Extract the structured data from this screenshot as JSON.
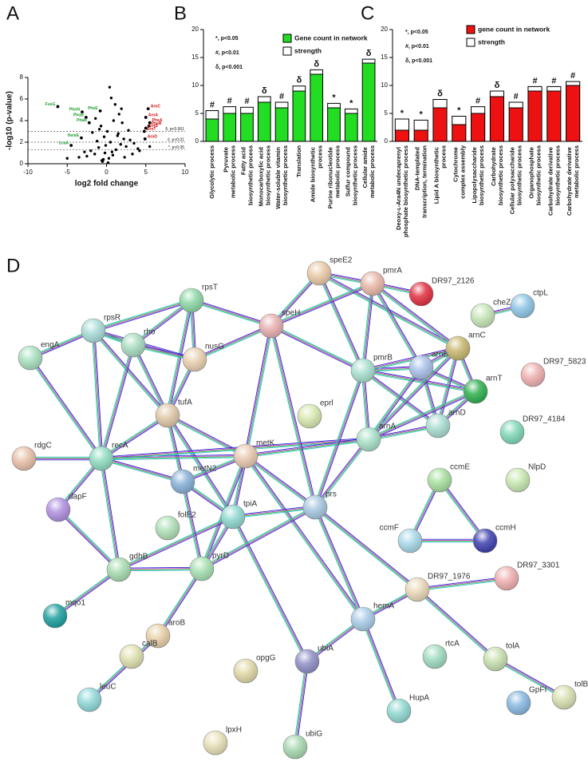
{
  "panels": [
    "A",
    "B",
    "C",
    "D"
  ],
  "chart_data": [
    {
      "type": "scatter",
      "xlabel": "log2 fold change",
      "ylabel": "-log10 (p-value)",
      "xlim": [
        -10,
        10
      ],
      "ylim": [
        0,
        8
      ],
      "xticks": [
        -10,
        -5,
        0,
        5,
        10
      ],
      "yticks": [
        0,
        2,
        4,
        6,
        8
      ],
      "color": "#000000",
      "x": [
        -0.5,
        0.3,
        -0.2,
        0.8,
        -1,
        1.2,
        -1.5,
        0.5,
        -0.3,
        1.8,
        -2,
        2.2,
        0.1,
        -0.7,
        1.5,
        -1.2,
        2.5,
        -2.5,
        3,
        0.9,
        -0.1,
        0.6,
        -0.9,
        1.1,
        -1.8,
        2,
        -2.8,
        3.5,
        1.6,
        -0.4,
        0.2,
        4,
        -3.5,
        2.8,
        0.4,
        -1.4,
        1.9,
        1.4,
        -0.6,
        0.7,
        2.3,
        3.3,
        4.2,
        -5,
        5.5
      ],
      "y": [
        0.2,
        0.5,
        1,
        0.8,
        1.5,
        1.3,
        0.9,
        2,
        2.5,
        1.8,
        1.2,
        2.3,
        3,
        3.5,
        2.8,
        2.1,
        1.6,
        0.7,
        2.2,
        4,
        1.7,
        6.1,
        3.2,
        5.5,
        2.9,
        3.8,
        1.1,
        1.9,
        4.6,
        0.4,
        0.1,
        1.4,
        0.6,
        3.1,
        7.1,
        4.2,
        5.1,
        2.6,
        0.3,
        1.1,
        0.6,
        0.9,
        1.2,
        0.5,
        1.6
      ],
      "thresholds": [
        {
          "value": 3,
          "label": "δ, p<0.001"
        },
        {
          "value": 2,
          "label": "#, p<0.01"
        },
        {
          "value": 1.3,
          "label": "*, p<0.05"
        }
      ],
      "annotations": [
        {
          "text": "FusG",
          "x": -6.2,
          "y": 5.3,
          "color": "#1a9e2a"
        },
        {
          "text": "PhnN",
          "x": -3.1,
          "y": 4.8,
          "color": "#1a9e2a"
        },
        {
          "text": "PheE",
          "x": -0.8,
          "y": 4.9,
          "color": "#1a9e2a"
        },
        {
          "text": "PhoB",
          "x": -2.6,
          "y": 4.3,
          "color": "#1a9e2a"
        },
        {
          "text": "PhaB",
          "x": -2.2,
          "y": 3.8,
          "color": "#1a9e2a"
        },
        {
          "text": "HemE",
          "x": -3.2,
          "y": 2.4,
          "color": "#1a9e2a"
        },
        {
          "text": "LcaA",
          "x": -4.5,
          "y": 1.7,
          "color": "#1a9e2a"
        },
        {
          "text": "ArnC",
          "x": 5.3,
          "y": 5.1,
          "color": "#d01010"
        },
        {
          "text": "ArnA",
          "x": 5.0,
          "y": 4.3,
          "color": "#d01010"
        },
        {
          "text": "PheA",
          "x": 5.5,
          "y": 3.8,
          "color": "#d01010"
        },
        {
          "text": "PheB",
          "x": 5.4,
          "y": 3.5,
          "color": "#d01010"
        },
        {
          "text": "ArnB",
          "x": 5.0,
          "y": 3.3,
          "color": "#d01010"
        },
        {
          "text": "ArnT",
          "x": 4.8,
          "y": 3.0,
          "color": "#d01010"
        },
        {
          "text": "ArnD",
          "x": 4.9,
          "y": 2.3,
          "color": "#d01010"
        }
      ]
    },
    {
      "type": "bar",
      "stacked": true,
      "categories": [
        "Glycolytic process",
        "Pyruvate metabolic process",
        "Fatty acid biosynthetic process",
        "Monocarboxylic acid biosynthetic process",
        "Water-soluble vitamin biosynthetic process",
        "Translation",
        "Amide biosynthetic process",
        "Purine ribonucleotide metabolic process",
        "Sulfur compound biosynthetic process",
        "Cellular amide metabolic process"
      ],
      "series": [
        {
          "name": "Gene count in network",
          "color": "#22dd22",
          "values": [
            4,
            5,
            5,
            7,
            6,
            9,
            12,
            6,
            5,
            14
          ]
        },
        {
          "name": "strength",
          "color": "#ffffff",
          "values": [
            1.5,
            1.2,
            1.1,
            1.0,
            1.0,
            0.9,
            0.8,
            0.8,
            0.8,
            0.7
          ]
        }
      ],
      "markers": [
        "#",
        "#",
        "#",
        "δ",
        "#",
        "δ",
        "δ",
        "*",
        "*",
        "δ"
      ],
      "notes": [
        "*, p<0.05",
        "#, p<0.01",
        "δ, p<0.001"
      ],
      "ylim": [
        0,
        20
      ],
      "yticks": [
        0,
        5,
        10,
        15,
        20
      ]
    },
    {
      "type": "bar",
      "stacked": true,
      "categories": [
        "Deoxy-ʟ-Ara4N undecaprenyl phosphate biosynthetic process",
        "DNA-templated transcription, termination",
        "Lipid A biosynthetic process",
        "Cytochrome complex assembly",
        "Lipopolysaccharide biosynthetic process",
        "Carbohydrate biosynthetic process",
        "Cellular polysaccharide biosynthetic process",
        "Organophosphate biosynthetic process",
        "Carbohydrate derivative biosynthetic process",
        "Carbohydrate derivative metabolic process"
      ],
      "series": [
        {
          "name": "gene count in network",
          "color": "#ee1111",
          "values": [
            2,
            2,
            6,
            3,
            5,
            8,
            6,
            9,
            9,
            10
          ]
        },
        {
          "name": "strength",
          "color": "#ffffff",
          "values": [
            2,
            1.8,
            1.5,
            1.5,
            1.2,
            1.0,
            1.0,
            0.8,
            0.8,
            0.7
          ]
        }
      ],
      "markers": [
        "*",
        "*",
        "δ",
        "*",
        "#",
        "δ",
        "#",
        "#",
        "#",
        "#"
      ],
      "notes": [
        "*, p<0.05",
        "#, p<0.01",
        "δ, p<0.001"
      ],
      "ylim": [
        0,
        20
      ],
      "yticks": [
        0,
        5,
        10,
        15,
        20
      ]
    }
  ],
  "network": {
    "nodes": [
      {
        "label": "speE2",
        "color": "#e9c9a8"
      },
      {
        "label": "pmrA",
        "color": "#e9b8a8"
      },
      {
        "label": "DR97_2126",
        "color": "#e23040"
      },
      {
        "label": "ctpL",
        "color": "#8ec6e6"
      },
      {
        "label": "cheZ",
        "color": "#c6e6b8"
      },
      {
        "label": "rpsT",
        "color": "#8ed8a8"
      },
      {
        "label": "rpsR",
        "color": "#a8dcd8"
      },
      {
        "label": "rho",
        "color": "#a8dcc0"
      },
      {
        "label": "engA",
        "color": "#a8e0c0"
      },
      {
        "label": "nusG",
        "color": "#e9d0b0"
      },
      {
        "label": "speH",
        "color": "#e9b0b0"
      },
      {
        "label": "pmrB",
        "color": "#a8e0d0"
      },
      {
        "label": "arnB",
        "color": "#a8c0e8"
      },
      {
        "label": "arnC",
        "color": "#c8b870"
      },
      {
        "label": "arnT",
        "color": "#30b050"
      },
      {
        "label": "DR97_5823",
        "color": "#f0b0b0"
      },
      {
        "label": "arnA",
        "color": "#a8e0c8"
      },
      {
        "label": "arnD",
        "color": "#a8dcd0"
      },
      {
        "label": "eprl",
        "color": "#d8e8b0"
      },
      {
        "label": "tufA",
        "color": "#e0c8a8"
      },
      {
        "label": "recA",
        "color": "#90dcc0"
      },
      {
        "label": "metK",
        "color": "#e8c8b0"
      },
      {
        "label": "metN2",
        "color": "#88b0d8"
      },
      {
        "label": "rdgC",
        "color": "#e8c0a8"
      },
      {
        "label": "DR97_4184",
        "color": "#80d8b8"
      },
      {
        "label": "ccmE",
        "color": "#a8e0a0"
      },
      {
        "label": "NlpD",
        "color": "#c8e8b0"
      },
      {
        "label": "dapF",
        "color": "#b090e0"
      },
      {
        "label": "prs",
        "color": "#a8c8e0"
      },
      {
        "label": "tpiA",
        "color": "#90d8d0"
      },
      {
        "label": "folE2",
        "color": "#b0e0b8"
      },
      {
        "label": "ccmF",
        "color": "#a8d8e8"
      },
      {
        "label": "ccmH",
        "color": "#4040b0"
      },
      {
        "label": "gdhB",
        "color": "#a8dcb0"
      },
      {
        "label": "pyrD",
        "color": "#a8e0b0"
      },
      {
        "label": "DR97_1976",
        "color": "#e8d8b8"
      },
      {
        "label": "DR97_3301",
        "color": "#f0b0b0"
      },
      {
        "label": "mqo1",
        "color": "#20a0a0"
      },
      {
        "label": "hemA",
        "color": "#a8cce8"
      },
      {
        "label": "aroB",
        "color": "#e8d0a8"
      },
      {
        "label": "calB",
        "color": "#e0e0b0"
      },
      {
        "label": "rtcA",
        "color": "#a0dcc0"
      },
      {
        "label": "tolA",
        "color": "#c8e0b0"
      },
      {
        "label": "ubiA",
        "color": "#9090c8"
      },
      {
        "label": "opgG",
        "color": "#e0d8a8"
      },
      {
        "label": "leuC",
        "color": "#90d8d8"
      },
      {
        "label": "GpFI",
        "color": "#88b8e0"
      },
      {
        "label": "tolB",
        "color": "#d8e0b0"
      },
      {
        "label": "HupA",
        "color": "#90d8d0"
      },
      {
        "label": "lpxH",
        "color": "#e8e0b8"
      },
      {
        "label": "ubiG",
        "color": "#a8d8b0"
      }
    ],
    "edges": [
      [
        5,
        6
      ],
      [
        5,
        7
      ],
      [
        5,
        9
      ],
      [
        5,
        10
      ],
      [
        5,
        19
      ],
      [
        6,
        7
      ],
      [
        6,
        9
      ],
      [
        6,
        8
      ],
      [
        6,
        20
      ],
      [
        6,
        19
      ],
      [
        7,
        9
      ],
      [
        7,
        20
      ],
      [
        7,
        19
      ],
      [
        9,
        19
      ],
      [
        9,
        10
      ],
      [
        8,
        20
      ],
      [
        19,
        20
      ],
      [
        19,
        21
      ],
      [
        19,
        29
      ],
      [
        19,
        22
      ],
      [
        20,
        21
      ],
      [
        20,
        23
      ],
      [
        20,
        27
      ],
      [
        20,
        22
      ],
      [
        20,
        33
      ],
      [
        20,
        16
      ],
      [
        21,
        22
      ],
      [
        21,
        29
      ],
      [
        21,
        28
      ],
      [
        21,
        34
      ],
      [
        21,
        10
      ],
      [
        21,
        16
      ],
      [
        21,
        38
      ],
      [
        0,
        10
      ],
      [
        0,
        1
      ],
      [
        0,
        11
      ],
      [
        0,
        13
      ],
      [
        1,
        10
      ],
      [
        1,
        11
      ],
      [
        1,
        12
      ],
      [
        1,
        13
      ],
      [
        1,
        2
      ],
      [
        11,
        12
      ],
      [
        11,
        13
      ],
      [
        11,
        16
      ],
      [
        11,
        17
      ],
      [
        11,
        14
      ],
      [
        11,
        28
      ],
      [
        11,
        10
      ],
      [
        12,
        13
      ],
      [
        12,
        14
      ],
      [
        12,
        17
      ],
      [
        12,
        16
      ],
      [
        13,
        14
      ],
      [
        13,
        17
      ],
      [
        13,
        16
      ],
      [
        14,
        17
      ],
      [
        16,
        17
      ],
      [
        14,
        16
      ],
      [
        4,
        3
      ],
      [
        25,
        31
      ],
      [
        25,
        32
      ],
      [
        31,
        32
      ],
      [
        29,
        28
      ],
      [
        29,
        34
      ],
      [
        29,
        33
      ],
      [
        29,
        43
      ],
      [
        29,
        22
      ],
      [
        28,
        34
      ],
      [
        28,
        35
      ],
      [
        28,
        38
      ],
      [
        28,
        16
      ],
      [
        33,
        34
      ],
      [
        33,
        37
      ],
      [
        33,
        27
      ],
      [
        34,
        39
      ],
      [
        39,
        45
      ],
      [
        35,
        36
      ],
      [
        35,
        38
      ],
      [
        35,
        42
      ],
      [
        42,
        47
      ],
      [
        38,
        43
      ],
      [
        38,
        48
      ],
      [
        43,
        50
      ],
      [
        10,
        28
      ],
      [
        22,
        34
      ]
    ]
  }
}
